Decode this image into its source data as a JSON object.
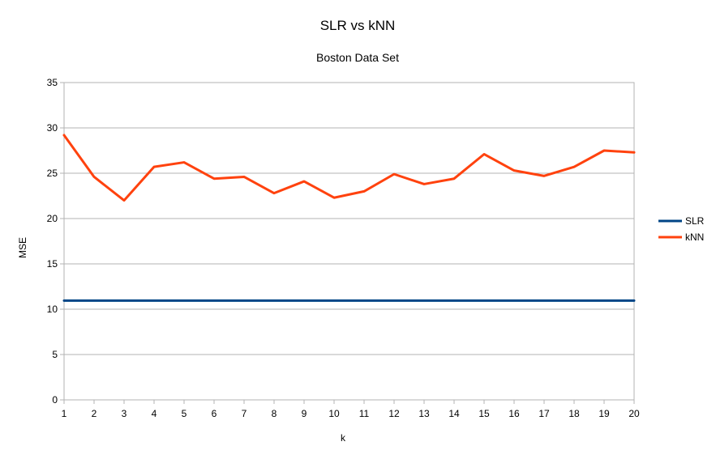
{
  "chart_data": {
    "type": "line",
    "title": "SLR vs kNN",
    "subtitle": "Boston Data Set",
    "xlabel": "k",
    "ylabel": "MSE",
    "x": [
      1,
      2,
      3,
      4,
      5,
      6,
      7,
      8,
      9,
      10,
      11,
      12,
      13,
      14,
      15,
      16,
      17,
      18,
      19,
      20
    ],
    "x_tick_labels": [
      "1",
      "2",
      "3",
      "4",
      "5",
      "6",
      "7",
      "8",
      "9",
      "10",
      "11",
      "12",
      "13",
      "14",
      "15",
      "16",
      "17",
      "18",
      "19",
      "20"
    ],
    "y_tick_labels": [
      "0",
      "5",
      "10",
      "15",
      "20",
      "25",
      "30",
      "35"
    ],
    "xlim": [
      1,
      20
    ],
    "ylim": [
      0,
      35
    ],
    "y_ticks": [
      0,
      5,
      10,
      15,
      20,
      25,
      30,
      35
    ],
    "grid": "horizontal",
    "legend_position": "right",
    "series": [
      {
        "name": "SLR",
        "color": "#004586",
        "values": [
          10.95,
          10.95,
          10.95,
          10.95,
          10.95,
          10.95,
          10.95,
          10.95,
          10.95,
          10.95,
          10.95,
          10.95,
          10.95,
          10.95,
          10.95,
          10.95,
          10.95,
          10.95,
          10.95,
          10.95
        ]
      },
      {
        "name": "kNN",
        "color": "#ff420e",
        "values": [
          29.2,
          24.6,
          22.0,
          25.7,
          26.2,
          24.4,
          24.6,
          22.8,
          24.1,
          22.3,
          23.0,
          24.9,
          23.8,
          24.4,
          27.1,
          25.3,
          24.7,
          25.7,
          27.5,
          27.3
        ]
      }
    ]
  }
}
